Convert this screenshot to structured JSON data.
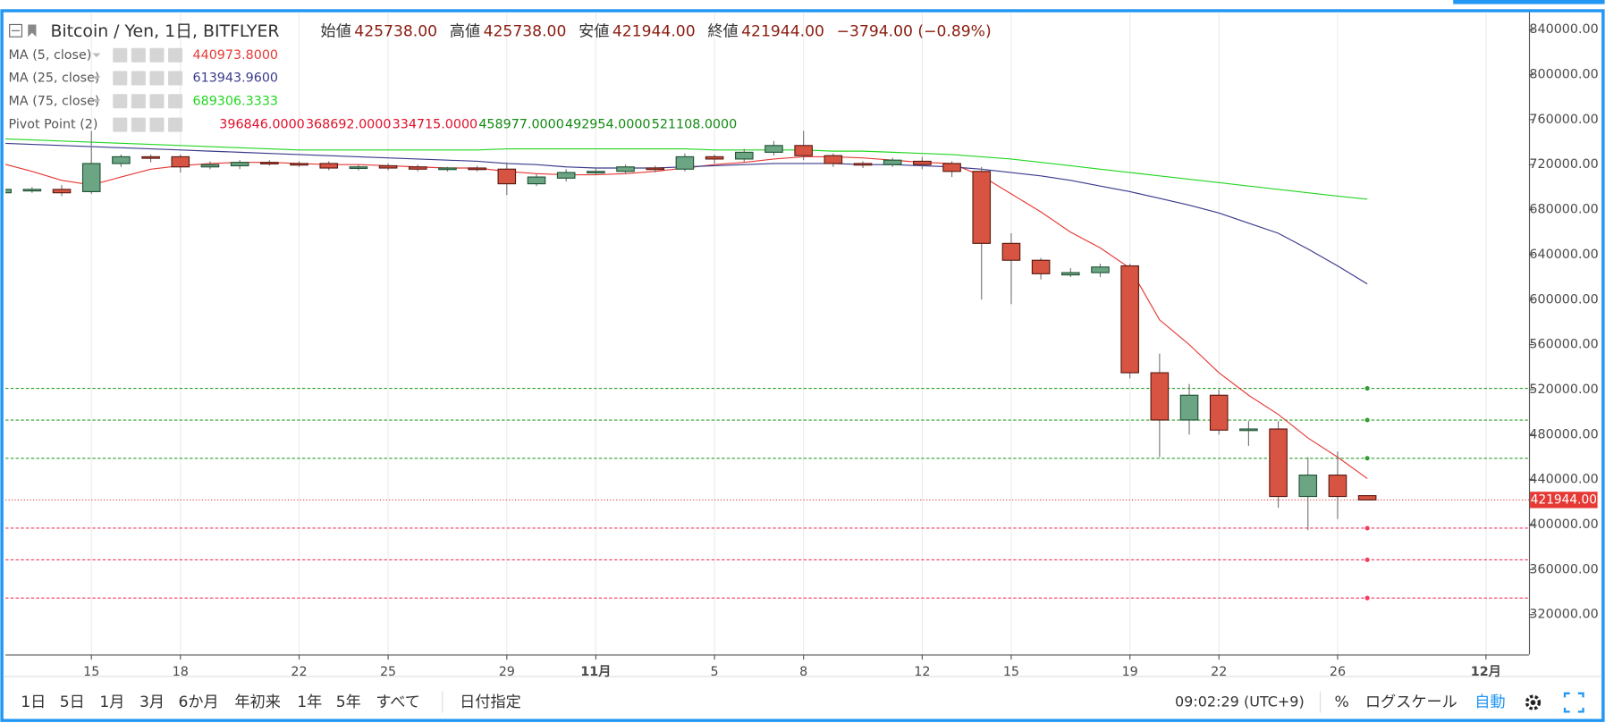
{
  "header": {
    "symbol": "Bitcoin / Yen, 1日, BITFLYER",
    "items": [
      {
        "name": "始値",
        "value": "425738.00"
      },
      {
        "name": "高値",
        "value": "425738.00"
      },
      {
        "name": "安値",
        "value": "421944.00"
      },
      {
        "name": "終値",
        "value": "421944.00"
      }
    ],
    "change": "−3794.00 (−0.89%)"
  },
  "toolbar": {
    "ranges": [
      "1日",
      "5日",
      "1月",
      "3月",
      "6か月",
      "年初来",
      "1年",
      "5年",
      "すべて"
    ],
    "date_button": "日付指定",
    "time": "09:02:29 (UTC+9)",
    "percent": "%",
    "log": "ログスケール",
    "auto": "自動"
  },
  "chart_data": {
    "type": "candlestick",
    "categories": [
      null,
      null,
      null,
      "15",
      null,
      null,
      "18",
      null,
      null,
      null,
      "22",
      null,
      null,
      "25",
      null,
      null,
      null,
      "29",
      null,
      null,
      "11月",
      null,
      null,
      null,
      "5",
      null,
      null,
      "8",
      null,
      null,
      null,
      "12",
      null,
      null,
      "15",
      null,
      null,
      null,
      "19",
      null,
      null,
      "22",
      null,
      null,
      null,
      "26",
      null,
      null,
      null,
      null,
      "12月"
    ],
    "open": [
      695000,
      697000,
      698000,
      696000,
      721000,
      727000,
      727000,
      718000,
      719000,
      722000,
      721000,
      721000,
      717000,
      719000,
      718000,
      716000,
      717000,
      716000,
      703000,
      708000,
      713000,
      714000,
      717000,
      716000,
      727000,
      725000,
      731000,
      737000,
      728000,
      721000,
      720000,
      723000,
      721000,
      714000,
      650000,
      635000,
      622000,
      624000,
      630000,
      535000,
      493000,
      515000,
      484000,
      485000,
      425000,
      444000,
      425738,
      null,
      null,
      null,
      null
    ],
    "high": [
      699000,
      700000,
      702000,
      750000,
      729000,
      729000,
      729000,
      723000,
      724000,
      724000,
      723000,
      723000,
      720000,
      721000,
      720000,
      718000,
      719000,
      722000,
      712000,
      716000,
      717000,
      720000,
      719000,
      730000,
      729000,
      734000,
      741000,
      750000,
      730000,
      723000,
      726000,
      727000,
      723000,
      718000,
      659000,
      637000,
      628000,
      632000,
      632000,
      552000,
      525000,
      520000,
      492000,
      492000,
      460000,
      465000,
      425738,
      null,
      null,
      null,
      null
    ],
    "low": [
      693000,
      695000,
      692000,
      694000,
      718000,
      722000,
      713000,
      716000,
      716000,
      719000,
      718000,
      715000,
      715000,
      715000,
      714000,
      714000,
      714000,
      693000,
      701000,
      705000,
      711000,
      712000,
      713000,
      714000,
      721000,
      722000,
      728000,
      724000,
      718000,
      717000,
      718000,
      716000,
      709000,
      600000,
      596000,
      618000,
      620000,
      620000,
      530000,
      460000,
      480000,
      480000,
      470000,
      415000,
      395000,
      405000,
      421944,
      null,
      null,
      null,
      null
    ],
    "close": [
      698000,
      698000,
      695000,
      721000,
      727000,
      726000,
      718000,
      720000,
      722000,
      721000,
      720000,
      717000,
      718000,
      717000,
      716000,
      717000,
      716000,
      703000,
      709000,
      713000,
      714000,
      718000,
      716000,
      727000,
      725000,
      731000,
      737000,
      728000,
      721000,
      720000,
      724000,
      720000,
      714000,
      650000,
      635000,
      623000,
      624000,
      629000,
      535000,
      493000,
      515000,
      484000,
      485000,
      425000,
      444000,
      425000,
      421944,
      null,
      null,
      null,
      null
    ],
    "up_color": "#6ba583",
    "down_color": "#d75442",
    "series": [
      {
        "name": "MA (5, close)",
        "color": "#e53935",
        "value_label": "440973.8000",
        "values": [
          721000,
          714000,
          706000,
          702000,
          709000,
          716000,
          719000,
          721000,
          722000,
          722000,
          721000,
          720000,
          720000,
          719000,
          718000,
          717000,
          717000,
          714000,
          712000,
          711000,
          711000,
          712000,
          714000,
          717000,
          720000,
          722000,
          725000,
          727000,
          727000,
          726000,
          724000,
          722000,
          721000,
          710000,
          694000,
          678000,
          660000,
          646000,
          628000,
          582000,
          560000,
          535000,
          515000,
          498000,
          477000,
          460000,
          440973.8,
          null,
          null,
          null,
          null
        ]
      },
      {
        "name": "MA (25, close)",
        "color": "#3a3a8c",
        "value_label": "613943.9600",
        "values": [
          739000,
          738000,
          737000,
          736000,
          735000,
          734000,
          733000,
          732000,
          731000,
          730000,
          729000,
          728000,
          727000,
          726000,
          725000,
          724000,
          723000,
          721000,
          720000,
          718000,
          717000,
          717000,
          717000,
          718000,
          719000,
          720000,
          721000,
          721000,
          721000,
          720000,
          720000,
          719000,
          718000,
          716000,
          713000,
          710000,
          706000,
          701000,
          696000,
          690000,
          684000,
          677000,
          668000,
          659000,
          645000,
          630000,
          613943.96,
          null,
          null,
          null,
          null
        ]
      },
      {
        "name": "MA (75, close)",
        "color": "#22d622",
        "value_label": "689306.3333",
        "values": [
          743000,
          742000,
          741000,
          740000,
          739000,
          738000,
          737000,
          736000,
          735000,
          734000,
          733000,
          733000,
          733000,
          733000,
          733000,
          733000,
          733000,
          734000,
          734000,
          734000,
          734000,
          734000,
          734000,
          734000,
          733000,
          733000,
          733000,
          733000,
          732000,
          732000,
          731000,
          730000,
          729000,
          727000,
          725000,
          722000,
          719000,
          716000,
          713000,
          710000,
          707000,
          704000,
          701000,
          698000,
          695000,
          692000,
          689306.3333,
          null,
          null,
          null,
          null
        ]
      }
    ],
    "pivot_name": "Pivot Point (2)",
    "pivot_levels": [
      396846,
      368692,
      334715,
      458977,
      492954,
      521108
    ],
    "pivot_labels": [
      "396846.0000",
      "368692.0000",
      "334715.0000",
      "458977.0000",
      "492954.0000",
      "521108.0000"
    ],
    "pivot_colors": [
      "#f23b5f",
      "#f23b5f",
      "#f23b5f",
      "#2e9e2e",
      "#2e9e2e",
      "#2e9e2e"
    ],
    "price_label": {
      "value": 421944,
      "label": "421944.00"
    },
    "ylim": [
      284545,
      855455
    ],
    "yticks": [
      {
        "value": 320000,
        "label": "320000.00"
      },
      {
        "value": 360000,
        "label": "360000.00"
      },
      {
        "value": 400000,
        "label": "400000.00"
      },
      {
        "value": 440000,
        "label": "440000.00"
      },
      {
        "value": 480000,
        "label": "480000.00"
      },
      {
        "value": 520000,
        "label": "520000.00"
      },
      {
        "value": 560000,
        "label": "560000.00"
      },
      {
        "value": 600000,
        "label": "600000.00"
      },
      {
        "value": 640000,
        "label": "640000.00"
      },
      {
        "value": 680000,
        "label": "680000.00"
      },
      {
        "value": 720000,
        "label": "720000.00"
      },
      {
        "value": 760000,
        "label": "760000.00"
      },
      {
        "value": 800000,
        "label": "800000.00"
      },
      {
        "value": 840000,
        "label": "840000.00"
      }
    ],
    "grid": true
  }
}
